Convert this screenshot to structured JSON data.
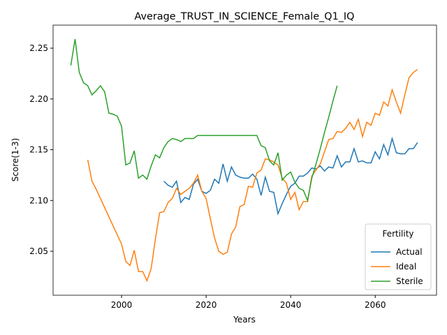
{
  "chart_data": {
    "type": "line",
    "title": "Average_TRUST_IN_SCIENCE_Female_Q1_IQ",
    "xlabel": "Years",
    "ylabel": "Score(1-3)",
    "legend_title": "Fertility",
    "legend": "lower right",
    "x": [
      1988,
      1989,
      1990,
      1991,
      1992,
      1993,
      1994,
      1995,
      1996,
      1997,
      1998,
      1999,
      2000,
      2001,
      2002,
      2003,
      2004,
      2005,
      2006,
      2007,
      2008,
      2009,
      2010,
      2011,
      2012,
      2013,
      2014,
      2015,
      2016,
      2017,
      2018,
      2019,
      2020,
      2021,
      2022,
      2023,
      2024,
      2025,
      2026,
      2027,
      2028,
      2029,
      2030,
      2031,
      2032,
      2033,
      2034,
      2035,
      2036,
      2037,
      2038,
      2039,
      2040,
      2041,
      2042,
      2043,
      2044,
      2045,
      2046,
      2047,
      2048,
      2049,
      2050,
      2051,
      2052,
      2053,
      2054,
      2055,
      2056,
      2057,
      2058,
      2059,
      2060,
      2061,
      2062,
      2063,
      2064,
      2065,
      2066,
      2067,
      2068,
      2069,
      2070
    ],
    "series": [
      {
        "name": "Actual",
        "color": "#1f77b4",
        "values": [
          null,
          null,
          null,
          null,
          null,
          null,
          null,
          null,
          null,
          null,
          null,
          null,
          null,
          null,
          null,
          null,
          null,
          null,
          null,
          null,
          null,
          null,
          2.119,
          2.115,
          2.113,
          2.119,
          2.098,
          2.103,
          2.101,
          2.116,
          2.121,
          2.109,
          2.107,
          2.11,
          2.121,
          2.117,
          2.136,
          2.119,
          2.133,
          2.125,
          2.123,
          2.122,
          2.122,
          2.126,
          2.121,
          2.105,
          2.123,
          2.109,
          2.108,
          2.087,
          2.097,
          2.106,
          2.114,
          2.117,
          2.124,
          2.124,
          2.127,
          2.132,
          2.131,
          2.134,
          2.129,
          2.133,
          2.132,
          2.144,
          2.133,
          2.138,
          2.138,
          2.151,
          2.138,
          2.139,
          2.137,
          2.137,
          2.148,
          2.141,
          2.155,
          2.145,
          2.161,
          2.147,
          2.146,
          2.146,
          2.151,
          2.151,
          2.157
        ]
      },
      {
        "name": "Ideal",
        "color": "#ff7f0e",
        "values": [
          null,
          null,
          null,
          null,
          2.14,
          2.119,
          2.111,
          2.102,
          2.093,
          2.084,
          2.075,
          2.066,
          2.057,
          2.04,
          2.036,
          2.051,
          2.03,
          2.03,
          2.021,
          2.033,
          2.062,
          2.088,
          2.089,
          2.098,
          2.102,
          2.112,
          2.106,
          2.109,
          2.112,
          2.117,
          2.125,
          2.109,
          2.102,
          2.082,
          2.063,
          2.05,
          2.047,
          2.049,
          2.067,
          2.074,
          2.094,
          2.096,
          2.114,
          2.113,
          2.127,
          2.13,
          2.141,
          2.14,
          2.138,
          2.135,
          2.122,
          2.117,
          2.101,
          2.108,
          2.091,
          2.099,
          2.099,
          2.124,
          2.13,
          2.136,
          2.148,
          2.16,
          2.161,
          2.168,
          2.167,
          2.171,
          2.177,
          2.17,
          2.18,
          2.163,
          2.177,
          2.174,
          2.186,
          2.184,
          2.197,
          2.193,
          2.209,
          2.197,
          2.186,
          2.204,
          2.221,
          2.226,
          2.229
        ]
      },
      {
        "name": "Sterile",
        "color": "#2ca02c",
        "values": [
          2.233,
          2.259,
          2.226,
          2.216,
          2.213,
          2.204,
          2.208,
          2.213,
          2.207,
          2.186,
          2.185,
          2.183,
          2.173,
          2.135,
          2.137,
          2.149,
          2.122,
          2.125,
          2.121,
          2.134,
          2.145,
          2.142,
          2.152,
          2.158,
          2.161,
          2.16,
          2.158,
          2.161,
          2.161,
          2.161,
          2.164,
          2.164,
          2.164,
          2.164,
          2.164,
          2.164,
          2.164,
          2.164,
          2.164,
          2.164,
          2.164,
          2.164,
          2.164,
          2.164,
          2.164,
          2.154,
          2.152,
          2.139,
          2.135,
          2.147,
          2.12,
          2.125,
          2.128,
          2.118,
          2.112,
          2.11,
          2.1,
          2.122,
          2.136,
          2.151,
          2.167,
          2.182,
          2.198,
          2.213,
          null,
          null,
          null,
          null,
          null,
          null,
          null,
          null,
          null,
          null,
          null,
          null,
          null,
          null,
          null,
          null,
          null,
          null,
          null
        ]
      }
    ],
    "xlim": [
      1983.8,
      2074.5
    ],
    "xticks": [
      2000,
      2020,
      2040,
      2060
    ],
    "ylim": [
      2.0067,
      2.2727
    ],
    "yticks": [
      2.05,
      {
        "value": 2.1,
        "label": "2.10"
      },
      2.15,
      {
        "value": 2.2,
        "label": "2.20"
      },
      2.25
    ],
    "grid": false
  }
}
